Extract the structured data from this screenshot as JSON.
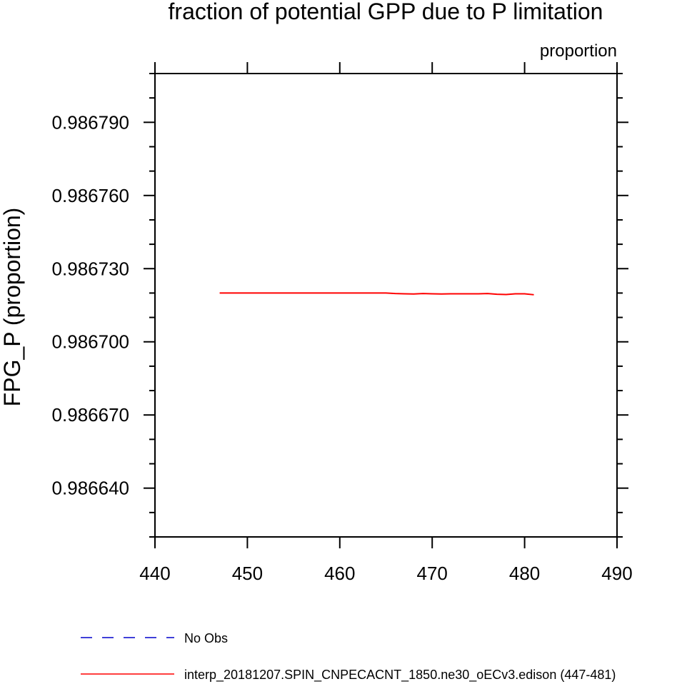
{
  "chart_data": {
    "type": "line",
    "title": "fraction of potential GPP due to P limitation",
    "units_label": "proportion",
    "ylabel": "FPG_P  (proportion)",
    "xlabel": "",
    "xlim": [
      440,
      490
    ],
    "ylim": [
      0.98662,
      0.98681
    ],
    "xticks": [
      440,
      450,
      460,
      470,
      480,
      490
    ],
    "xtick_labels": [
      "440",
      "450",
      "460",
      "470",
      "480",
      "490"
    ],
    "yticks": [
      0.98664,
      0.98667,
      0.9867,
      0.98673,
      0.98676,
      0.98679
    ],
    "ytick_labels": [
      "0.986640",
      "0.986670",
      "0.986700",
      "0.986730",
      "0.986760",
      "0.986790"
    ],
    "grid": false,
    "legend_position": "bottom",
    "series": [
      {
        "name": "No Obs",
        "color": "#0000cc",
        "dash": "dashed",
        "x": [],
        "y": []
      },
      {
        "name": "interp_20181207.SPIN_CNPECACNT_1850.ne30_oECv3.edison (447-481)",
        "color": "#ff0000",
        "dash": "solid",
        "x": [
          447,
          449,
          451,
          453,
          455,
          457,
          459,
          461,
          463,
          465,
          466,
          467,
          468,
          469,
          470,
          471,
          472,
          473,
          474,
          475,
          476,
          477,
          478,
          479,
          480,
          481
        ],
        "y": [
          0.98672,
          0.98672,
          0.98672,
          0.98672,
          0.98672,
          0.98672,
          0.98672,
          0.98672,
          0.98672,
          0.98672,
          0.9867198,
          0.9867197,
          0.9867196,
          0.9867198,
          0.9867197,
          0.9867196,
          0.9867197,
          0.9867197,
          0.9867197,
          0.9867197,
          0.9867198,
          0.9867195,
          0.9867194,
          0.9867197,
          0.9867197,
          0.9867193
        ]
      }
    ]
  }
}
